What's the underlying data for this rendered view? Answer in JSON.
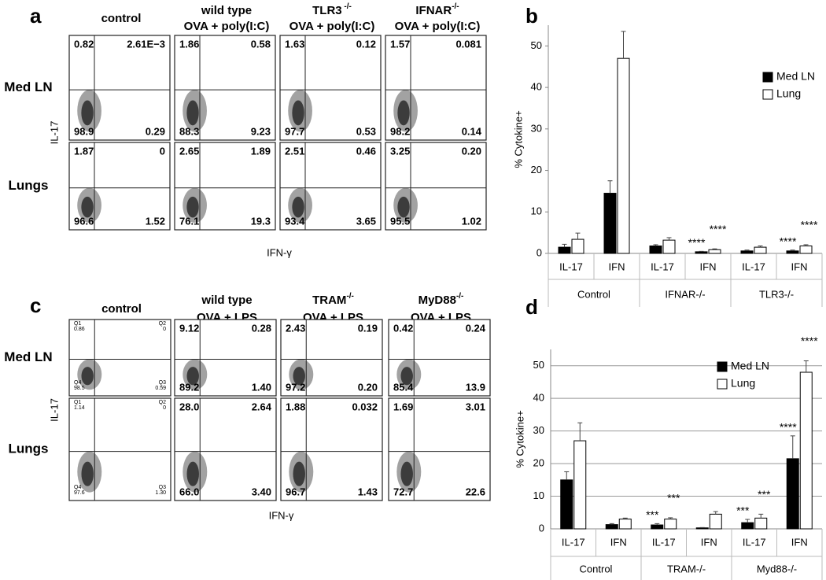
{
  "figure": {
    "panels": [
      {
        "letter": "a",
        "columns": [
          {
            "name": "control"
          },
          {
            "name": "wild type",
            "treatment": "OVA + poly(I:C)"
          },
          {
            "name": "TLR3",
            "sup": " -/-",
            "treatment": "OVA + poly(I:C)"
          },
          {
            "name": "IFNAR",
            "sup": "-/-",
            "treatment": "OVA + poly(I:C)"
          }
        ],
        "rows": [
          "Med LN",
          "Lungs"
        ],
        "y_label": "IL-17",
        "x_label": "IFN-γ",
        "quadrants": [
          [
            [
              "0.82",
              "2.61E−3",
              "98.9",
              "0.29"
            ],
            [
              "1.86",
              "0.58",
              "88.3",
              "9.23"
            ],
            [
              "1.63",
              "0.12",
              "97.7",
              "0.53"
            ],
            [
              "1.57",
              "0.081",
              "98.2",
              "0.14"
            ]
          ],
          [
            [
              "1.87",
              "0",
              "96.6",
              "1.52"
            ],
            [
              "2.65",
              "1.89",
              "76.1",
              "19.3"
            ],
            [
              "2.51",
              "0.46",
              "93.4",
              "3.65"
            ],
            [
              "3.25",
              "0.20",
              "95.5",
              "1.02"
            ]
          ]
        ]
      },
      {
        "letter": "c",
        "columns": [
          {
            "name": "control",
            "quadrant_names": [
              "Q1",
              "Q2",
              "Q4",
              "Q3"
            ]
          },
          {
            "name": "wild type",
            "treatment": "OVA + LPS"
          },
          {
            "name": "TRAM",
            "sup": "-/-",
            "treatment": "OVA + LPS"
          },
          {
            "name": "MyD88",
            "sup": "-/-",
            "treatment": "OVA + LPS"
          }
        ],
        "rows": [
          "Med LN",
          "Lungs"
        ],
        "y_label": "IL-17",
        "x_label": "IFN-γ",
        "quadrants": [
          [
            [
              "0.86",
              "0",
              "98.5",
              "0.59"
            ],
            [
              "9.12",
              "0.28",
              "89.2",
              "1.40"
            ],
            [
              "2.43",
              "0.19",
              "97.2",
              "0.20"
            ],
            [
              "0.42",
              "0.24",
              "85.4",
              "13.9"
            ]
          ],
          [
            [
              "1.14",
              "0",
              "97.6",
              "1.30"
            ],
            [
              "28.0",
              "2.64",
              "66.0",
              "3.40"
            ],
            [
              "1.88",
              "0.032",
              "96.7",
              "1.43"
            ],
            [
              "1.69",
              "3.01",
              "72.7",
              "22.6"
            ]
          ]
        ]
      }
    ]
  },
  "chart_data": [
    {
      "type": "bar",
      "letter": "b",
      "y_label": "% Cytokine+",
      "categories": [
        "IL-17",
        "IFN",
        "IL-17",
        "IFN",
        "IL-17",
        "IFN"
      ],
      "group_labels": [
        "Control",
        "IFNAR-/-",
        "TLR3-/-"
      ],
      "ylim": [
        0,
        55
      ],
      "yticks": [
        0,
        10,
        20,
        30,
        40,
        50
      ],
      "grid": false,
      "series": [
        {
          "name": "Med LN",
          "color": "#000000",
          "values": [
            1.5,
            14.5,
            1.8,
            0.4,
            0.6,
            0.6
          ],
          "errors": [
            0.7,
            3,
            0.3,
            0.1,
            0.2,
            0.2
          ],
          "value_annotations": [
            null,
            null,
            null,
            "****",
            null,
            "****"
          ]
        },
        {
          "name": "Lung",
          "color": "#ffffff",
          "values": [
            3.4,
            47,
            3.2,
            0.9,
            1.5,
            1.8
          ],
          "errors": [
            1.5,
            6.5,
            0.6,
            0.2,
            0.3,
            0.3
          ],
          "value_annotations": [
            null,
            null,
            null,
            "****",
            null,
            "****"
          ]
        }
      ]
    },
    {
      "type": "bar",
      "letter": "d",
      "y_label": "% Cytokine+",
      "categories": [
        "IL-17",
        "IFN",
        "IL-17",
        "IFN",
        "IL-17",
        "IFN"
      ],
      "group_labels": [
        "Control",
        "TRAM-/-",
        "Myd88-/-"
      ],
      "ylim": [
        0,
        55
      ],
      "yticks": [
        0,
        10,
        20,
        30,
        40,
        50
      ],
      "grid": true,
      "series": [
        {
          "name": "Med LN",
          "color": "#000000",
          "values": [
            15,
            1.3,
            1.2,
            0.3,
            1.9,
            21.5
          ],
          "errors": [
            2.5,
            0.3,
            0.4,
            0.1,
            1,
            7
          ],
          "value_annotations": [
            null,
            null,
            "***",
            null,
            "***",
            "****"
          ]
        },
        {
          "name": "Lung",
          "color": "#ffffff",
          "values": [
            27,
            3,
            3,
            4.5,
            3.3,
            48
          ],
          "errors": [
            5.5,
            0.3,
            0.4,
            0.8,
            1.2,
            3.5
          ],
          "value_annotations": [
            null,
            null,
            "***",
            null,
            "***",
            "****"
          ]
        }
      ]
    }
  ]
}
